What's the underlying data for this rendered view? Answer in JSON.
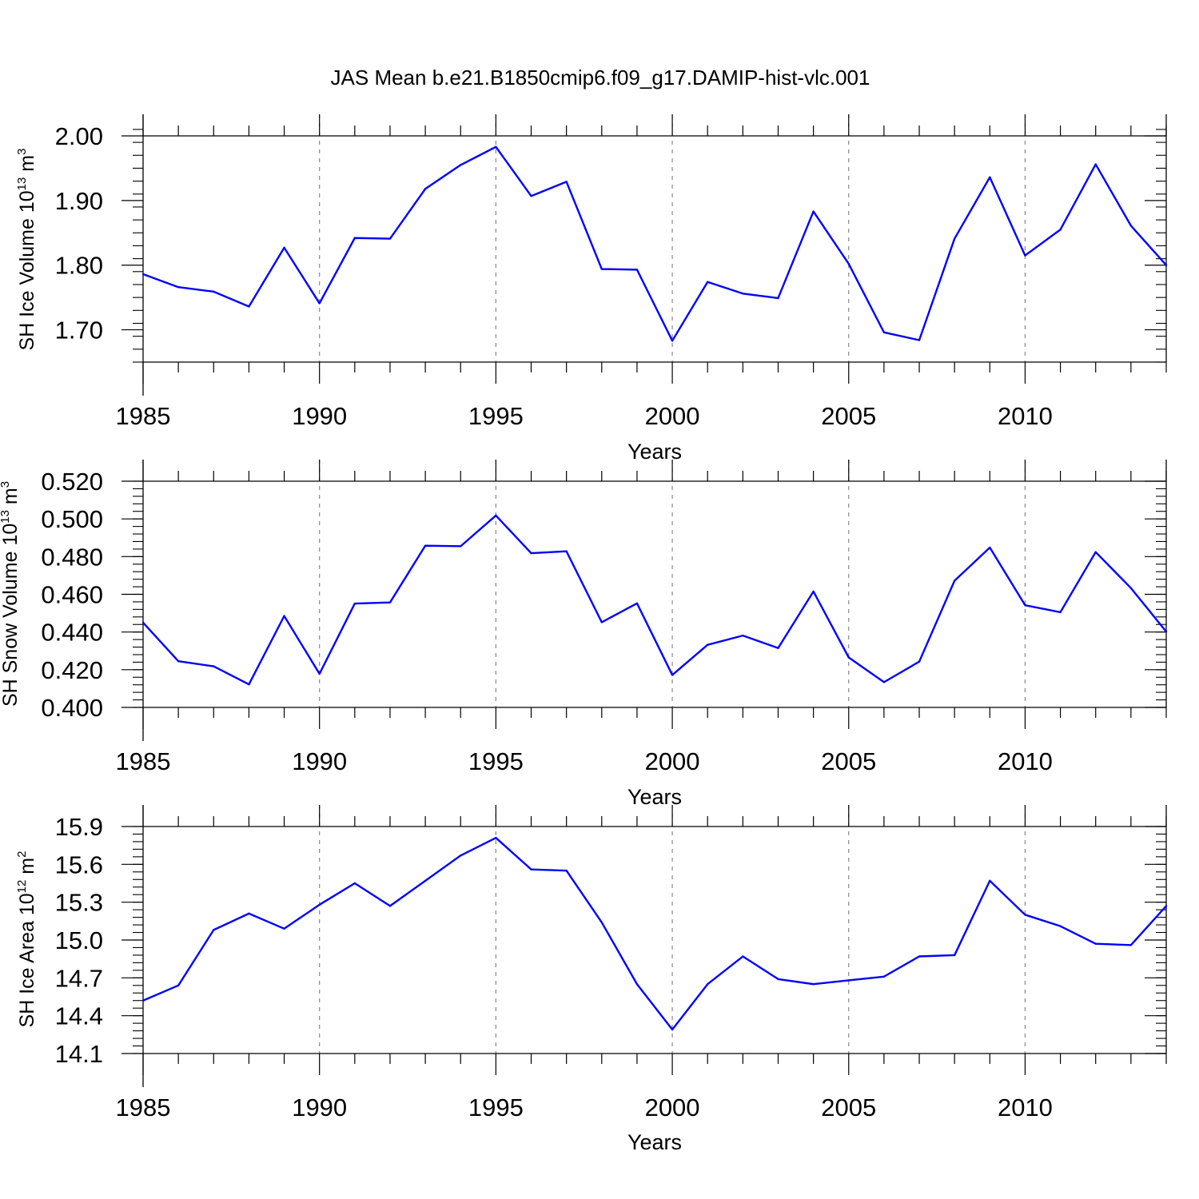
{
  "title": "JAS Mean b.e21.B1850cmip6.f09_g17.DAMIP-hist-vlc.001",
  "colors": {
    "series": "#0000ff",
    "axes": "#000000",
    "grid": "#888888"
  },
  "chart_data": [
    {
      "type": "line",
      "ylabel": {
        "main": "SH Ice Volume 10",
        "sup1": "13",
        "mid": " m",
        "sup2": "3"
      },
      "xlabel": "Years",
      "xlim": [
        1985,
        2014
      ],
      "x_ticks": [
        1985,
        1990,
        1995,
        2000,
        2005,
        2010
      ],
      "x_tick_labels": [
        "1985",
        "1990",
        "1995",
        "2000",
        "2005",
        "2010"
      ],
      "ylim": [
        1.65,
        2.0
      ],
      "y_ticks": [
        1.7,
        1.8,
        1.9,
        2.0
      ],
      "y_tick_labels": [
        "1.70",
        "1.80",
        "1.90",
        "2.00"
      ],
      "y_minor_step": 0.02,
      "grid": "vertical dashed at major x ticks",
      "series": [
        {
          "name": "SH Ice Volume",
          "x": [
            1985,
            1986,
            1987,
            1988,
            1989,
            1990,
            1991,
            1992,
            1993,
            1994,
            1995,
            1996,
            1997,
            1998,
            1999,
            2000,
            2001,
            2002,
            2003,
            2004,
            2005,
            2006,
            2007,
            2008,
            2009,
            2010,
            2011,
            2012,
            2013,
            2014
          ],
          "values": [
            1.786,
            1.766,
            1.759,
            1.736,
            1.827,
            1.741,
            1.842,
            1.841,
            1.918,
            1.955,
            1.983,
            1.907,
            1.929,
            1.794,
            1.793,
            1.683,
            1.774,
            1.756,
            1.749,
            1.883,
            1.802,
            1.696,
            1.684,
            1.841,
            1.936,
            1.815,
            1.855,
            1.956,
            1.861,
            1.8
          ]
        }
      ]
    },
    {
      "type": "line",
      "ylabel": {
        "main": "SH Snow Volume 10",
        "sup1": "13",
        "mid": " m",
        "sup2": "3"
      },
      "xlabel": "Years",
      "xlim": [
        1985,
        2014
      ],
      "x_ticks": [
        1985,
        1990,
        1995,
        2000,
        2005,
        2010
      ],
      "x_tick_labels": [
        "1985",
        "1990",
        "1995",
        "2000",
        "2005",
        "2010"
      ],
      "ylim": [
        0.4,
        0.52
      ],
      "y_ticks": [
        0.4,
        0.42,
        0.44,
        0.46,
        0.48,
        0.5,
        0.52
      ],
      "y_tick_labels": [
        "0.400",
        "0.420",
        "0.440",
        "0.460",
        "0.480",
        "0.500",
        "0.520"
      ],
      "y_minor_step": 0.004,
      "grid": "vertical dashed at major x ticks",
      "series": [
        {
          "name": "SH Snow Volume",
          "x": [
            1985,
            1986,
            1987,
            1988,
            1989,
            1990,
            1991,
            1992,
            1993,
            1994,
            1995,
            1996,
            1997,
            1998,
            1999,
            2000,
            2001,
            2002,
            2003,
            2004,
            2005,
            2006,
            2007,
            2008,
            2009,
            2010,
            2011,
            2012,
            2013,
            2014
          ],
          "values": [
            0.445,
            0.4245,
            0.4218,
            0.4122,
            0.4485,
            0.4178,
            0.4551,
            0.4557,
            0.4858,
            0.4855,
            0.5018,
            0.4818,
            0.4828,
            0.4452,
            0.4552,
            0.4172,
            0.4332,
            0.4381,
            0.4315,
            0.4615,
            0.4265,
            0.4134,
            0.4243,
            0.4672,
            0.4848,
            0.4542,
            0.4505,
            0.4824,
            0.4633,
            0.4402
          ]
        }
      ]
    },
    {
      "type": "line",
      "ylabel": {
        "main": "SH Ice Area 10",
        "sup1": "12",
        "mid": " m",
        "sup2": "2"
      },
      "xlabel": "Years",
      "xlim": [
        1985,
        2014
      ],
      "x_ticks": [
        1985,
        1990,
        1995,
        2000,
        2005,
        2010
      ],
      "x_tick_labels": [
        "1985",
        "1990",
        "1995",
        "2000",
        "2005",
        "2010"
      ],
      "ylim": [
        14.1,
        15.9
      ],
      "y_ticks": [
        14.1,
        14.4,
        14.7,
        15.0,
        15.3,
        15.6,
        15.9
      ],
      "y_tick_labels": [
        "14.1",
        "14.4",
        "14.7",
        "15.0",
        "15.3",
        "15.6",
        "15.9"
      ],
      "y_minor_step": 0.06,
      "grid": "vertical dashed at major x ticks",
      "series": [
        {
          "name": "SH Ice Area",
          "x": [
            1985,
            1986,
            1987,
            1988,
            1989,
            1990,
            1991,
            1992,
            1993,
            1994,
            1995,
            1996,
            1997,
            1998,
            1999,
            2000,
            2001,
            2002,
            2003,
            2004,
            2005,
            2006,
            2007,
            2008,
            2009,
            2010,
            2011,
            2012,
            2013,
            2014
          ],
          "values": [
            14.52,
            14.64,
            15.08,
            15.21,
            15.09,
            15.28,
            15.45,
            15.27,
            15.47,
            15.67,
            15.81,
            15.56,
            15.55,
            15.14,
            14.65,
            14.29,
            14.65,
            14.87,
            14.69,
            14.65,
            14.68,
            14.71,
            14.87,
            14.88,
            15.47,
            15.2,
            15.11,
            14.97,
            14.96,
            15.27
          ]
        }
      ]
    }
  ]
}
